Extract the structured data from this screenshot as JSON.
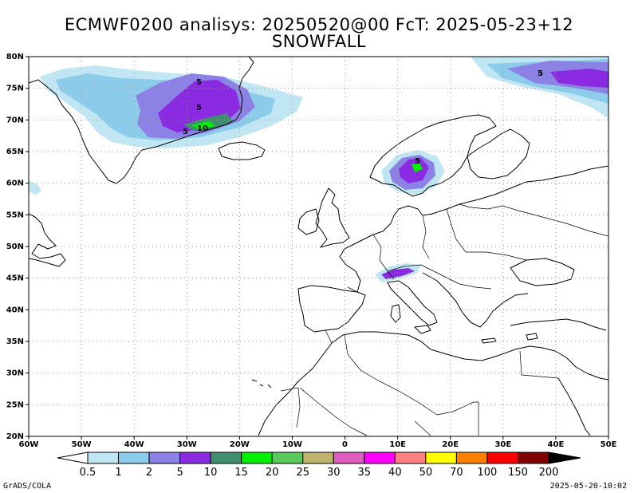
{
  "title_line1": "ECMWF0200 analisys: 20250520@00 FcT: 2025-05-23+12",
  "title_line2": "SNOWFALL",
  "lat_labels": [
    "80N",
    "75N",
    "70N",
    "65N",
    "60N",
    "55N",
    "50N",
    "45N",
    "40N",
    "35N",
    "30N",
    "25N",
    "20N"
  ],
  "lon_labels": [
    "60W",
    "50W",
    "40W",
    "30W",
    "20W",
    "10W",
    "0",
    "10E",
    "20E",
    "30E",
    "40E",
    "50E"
  ],
  "colorbar": {
    "labels": [
      "0.5",
      "1",
      "2",
      "5",
      "10",
      "15",
      "20",
      "25",
      "30",
      "35",
      "40",
      "50",
      "70",
      "100",
      "150",
      "200"
    ],
    "colors": [
      "#bfe6f2",
      "#8ccbe9",
      "#8c82e6",
      "#8a2be2",
      "#3f8f6f",
      "#00f000",
      "#5ac85a",
      "#bfb36e",
      "#e05cbf",
      "#ff00ff",
      "#ff8080",
      "#ffff00",
      "#ff8000",
      "#ff0000",
      "#800000"
    ]
  },
  "contour_labels": [
    "5",
    "5",
    "5",
    "10",
    "5",
    "5"
  ],
  "credit": "GrADS/COLA",
  "timestamp": "2025-05-20-10:02"
}
